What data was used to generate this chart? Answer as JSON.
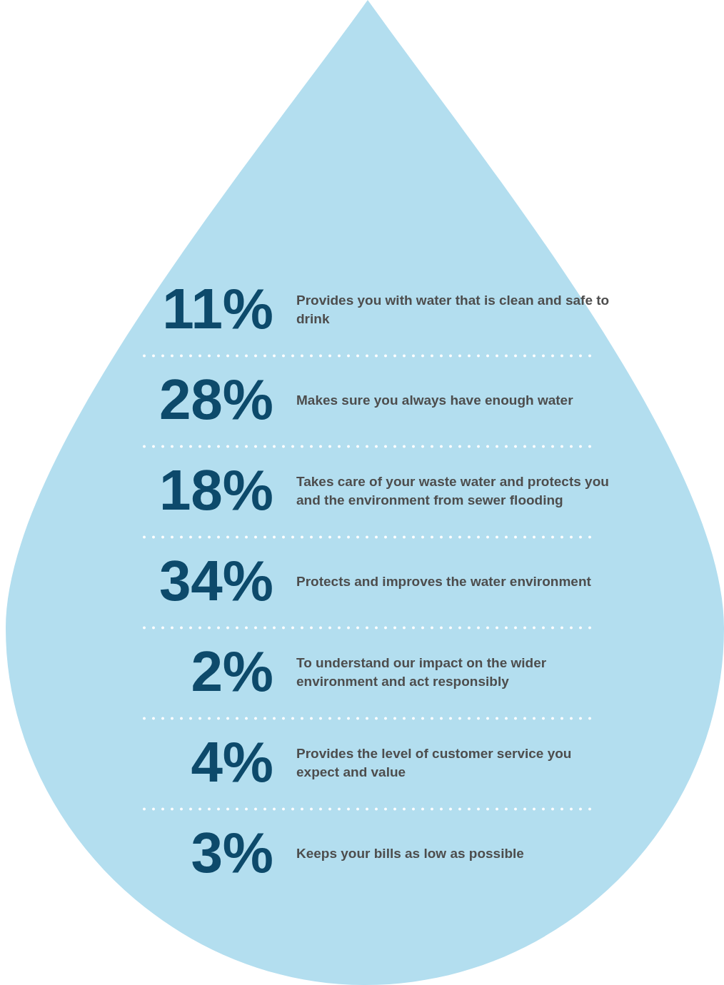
{
  "chart_data": {
    "type": "other",
    "categories": [
      "Provides you with water that is clean and safe to drink",
      "Makes sure you always have enough water",
      "Takes care of your waste water and protects you and the environment from sewer flooding",
      "Protects and improves the water environment",
      "To understand our impact on the wider environment and act responsibly",
      "Provides the level of customer service you expect and value",
      "Keeps your bills as low as possible"
    ],
    "values": [
      11,
      28,
      18,
      34,
      2,
      4,
      3
    ],
    "value_labels": [
      "11%",
      "28%",
      "18%",
      "34%",
      "2%",
      "4%",
      "3%"
    ],
    "color": "#0d4a6b"
  }
}
